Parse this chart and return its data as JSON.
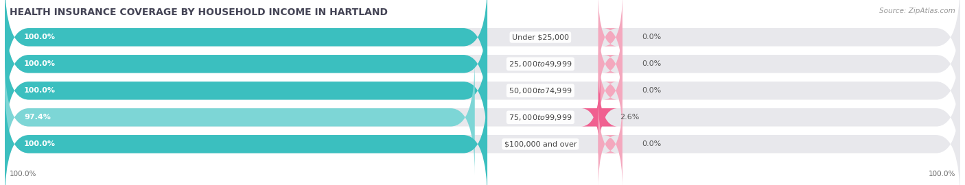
{
  "title": "HEALTH INSURANCE COVERAGE BY HOUSEHOLD INCOME IN HARTLAND",
  "source": "Source: ZipAtlas.com",
  "categories": [
    "Under $25,000",
    "$25,000 to $49,999",
    "$50,000 to $74,999",
    "$75,000 to $99,999",
    "$100,000 and over"
  ],
  "with_coverage": [
    100.0,
    100.0,
    100.0,
    97.4,
    100.0
  ],
  "without_coverage": [
    0.0,
    0.0,
    0.0,
    2.6,
    0.0
  ],
  "color_with": "#3BBFBF",
  "color_with_light": "#7DD6D6",
  "color_without_small": "#F4A8BE",
  "color_without_large": "#F06090",
  "bg_bar_color": "#E8E8EC",
  "title_fontsize": 10,
  "label_fontsize": 8,
  "pct_fontsize": 8,
  "source_fontsize": 7.5,
  "legend_fontsize": 8,
  "bar_height": 0.68,
  "n_bars": 5,
  "left_axis_label": "100.0%",
  "right_axis_label": "100.0%"
}
